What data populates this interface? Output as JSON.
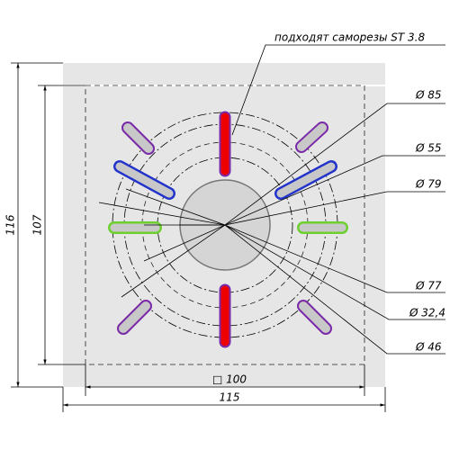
{
  "note": "подходят саморезы ST 3.8",
  "diameters": [
    "Ø 85",
    "Ø 55",
    "Ø 79",
    "Ø 77",
    "Ø 32,4",
    "Ø 46"
  ],
  "dimensions": {
    "height_outer": "116",
    "height_inner": "107",
    "width_inner": "□ 100",
    "width_outer": "115"
  }
}
